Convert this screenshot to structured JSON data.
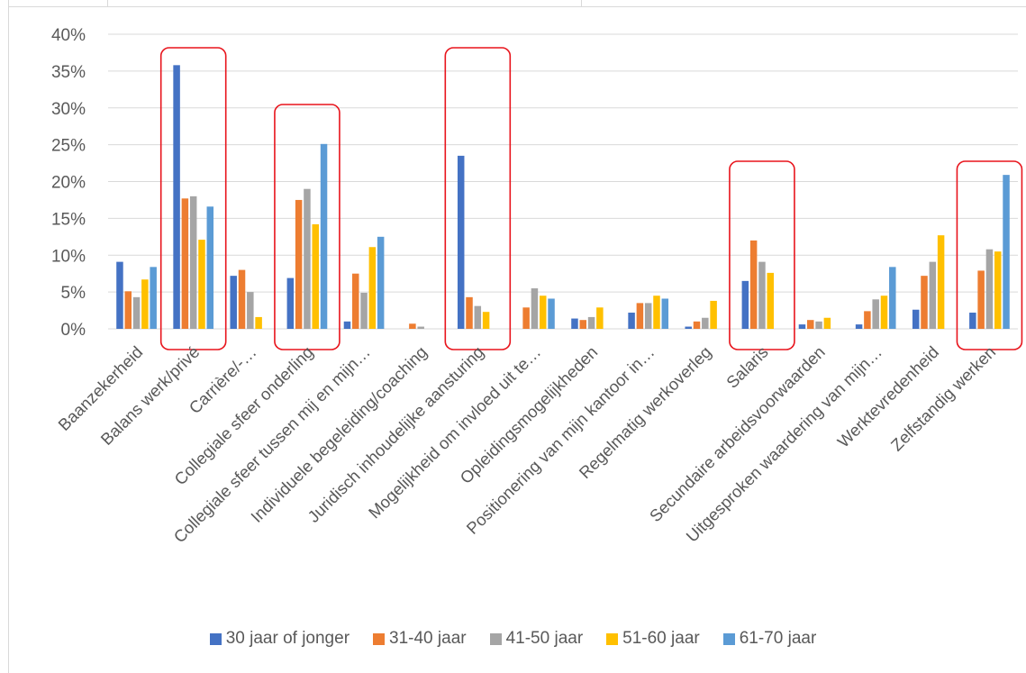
{
  "chart_data": {
    "type": "bar",
    "title": "",
    "xlabel": "",
    "ylabel": "",
    "ylim": [
      0,
      0.4
    ],
    "yticks": [
      "0%",
      "5%",
      "10%",
      "15%",
      "20%",
      "25%",
      "30%",
      "35%",
      "40%"
    ],
    "grid": true,
    "legend_position": "bottom",
    "categories": [
      "Baanzekerheid",
      "Balans werk/privé",
      "Carrière/-…",
      "Collegiale sfeer onderling",
      "Collegiale sfeer tussen mij en mijn…",
      "Individuele begeleiding/coaching",
      "Juridisch inhoudelijke aansturing",
      "Mogelijkheid om invloed uit te…",
      "Opleidingsmogelijkheden",
      "Positionering van mijn kantoor in…",
      "Regelmatig werkoverleg",
      "Salaris",
      "Secundaire arbeidsvoorwaarden",
      "Uitgesproken waardering van mijn…",
      "Werktevredenheid",
      "Zelfstandig werken"
    ],
    "series": [
      {
        "name": "30 jaar of jonger",
        "color": "#4472c4",
        "values": [
          0.091,
          0.358,
          0.072,
          0.069,
          0.01,
          0.0,
          0.235,
          0.0,
          0.014,
          0.022,
          0.003,
          0.065,
          0.006,
          0.006,
          0.026,
          0.022
        ]
      },
      {
        "name": "31-40 jaar",
        "color": "#ed7d31",
        "values": [
          0.051,
          0.177,
          0.08,
          0.175,
          0.075,
          0.007,
          0.043,
          0.029,
          0.012,
          0.035,
          0.01,
          0.12,
          0.012,
          0.024,
          0.072,
          0.079
        ]
      },
      {
        "name": "41-50 jaar",
        "color": "#a5a5a5",
        "values": [
          0.043,
          0.18,
          0.05,
          0.19,
          0.049,
          0.003,
          0.031,
          0.055,
          0.016,
          0.035,
          0.015,
          0.091,
          0.01,
          0.04,
          0.091,
          0.108
        ]
      },
      {
        "name": "51-60 jaar",
        "color": "#ffc000",
        "values": [
          0.067,
          0.121,
          0.016,
          0.142,
          0.111,
          0.0,
          0.023,
          0.045,
          0.029,
          0.045,
          0.038,
          0.076,
          0.015,
          0.045,
          0.127,
          0.105
        ]
      },
      {
        "name": "61-70 jaar",
        "color": "#5b9bd5",
        "values": [
          0.084,
          0.166,
          0.0,
          0.251,
          0.125,
          0.0,
          0.0,
          0.041,
          0.0,
          0.041,
          0.0,
          0.0,
          0.0,
          0.084,
          0.0,
          0.209
        ]
      }
    ],
    "highlighted_categories": [
      "Balans werk/privé",
      "Collegiale sfeer onderling",
      "Juridisch inhoudelijke aansturing",
      "Salaris",
      "Zelfstandig werken"
    ],
    "highlight_color": "#e8141c",
    "axis_color": "#d9d9d9",
    "grid_color": "#d9d9d9",
    "text_color": "#595959"
  }
}
